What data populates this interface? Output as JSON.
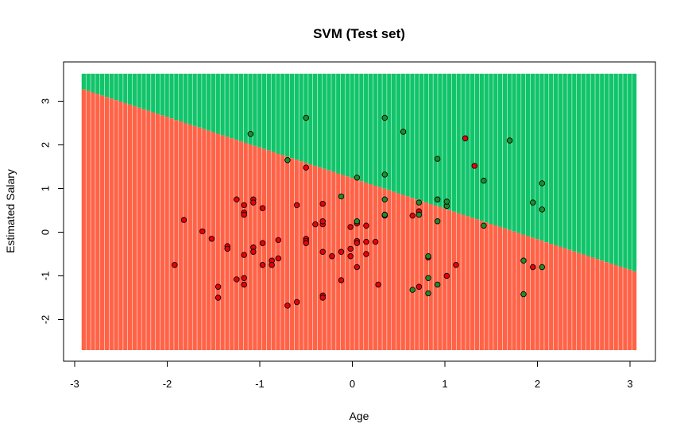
{
  "chart_data": {
    "type": "scatter",
    "title": "SVM (Test set)",
    "xlabel": "Age",
    "ylabel": "Estimated Salary",
    "xlim": [
      -3,
      3
    ],
    "ylim": [
      -2.5,
      3.5
    ],
    "xticks": [
      "-3",
      "-2",
      "-1",
      "0",
      "1",
      "2",
      "3"
    ],
    "yticks": [
      "-2",
      "-1",
      "0",
      "1",
      "2",
      "3"
    ],
    "grid": {
      "x_range": [
        -2.9,
        3.05
      ],
      "y_range": [
        -2.7,
        3.63
      ],
      "step": 0.05,
      "boundary": {
        "slope": -0.7,
        "intercept": 1.24
      }
    },
    "colors": {
      "region_0": "#ff6347",
      "region_1": "#11c46a",
      "point_0": "#e8000b",
      "point_1": "#1f8b2e",
      "stripe": "#ffffff"
    },
    "series": [
      {
        "class": 0,
        "points": [
          [
            -1.92,
            -0.75
          ],
          [
            -1.82,
            0.28
          ],
          [
            -1.62,
            0.02
          ],
          [
            -1.52,
            -0.15
          ],
          [
            -1.45,
            -1.25
          ],
          [
            -1.45,
            -1.5
          ],
          [
            -1.35,
            -0.32
          ],
          [
            -1.35,
            -0.38
          ],
          [
            -1.25,
            0.75
          ],
          [
            -1.25,
            -1.08
          ],
          [
            -1.17,
            0.62
          ],
          [
            -1.17,
            0.45
          ],
          [
            -1.17,
            0.4
          ],
          [
            -1.17,
            -1.05
          ],
          [
            -1.17,
            -1.2
          ],
          [
            -1.17,
            -0.52
          ],
          [
            -1.07,
            0.75
          ],
          [
            -1.07,
            0.68
          ],
          [
            -1.07,
            -0.35
          ],
          [
            -1.07,
            -0.45
          ],
          [
            -0.97,
            0.55
          ],
          [
            -0.97,
            -0.75
          ],
          [
            -0.97,
            -0.25
          ],
          [
            -0.87,
            -0.65
          ],
          [
            -0.87,
            -0.75
          ],
          [
            -0.8,
            -0.18
          ],
          [
            -0.8,
            -0.6
          ],
          [
            -0.7,
            -1.68
          ],
          [
            -0.6,
            0.62
          ],
          [
            -0.6,
            -1.6
          ],
          [
            -0.5,
            1.48
          ],
          [
            -0.5,
            -0.15
          ],
          [
            -0.5,
            -0.2
          ],
          [
            -0.5,
            -0.25
          ],
          [
            -0.4,
            0.18
          ],
          [
            -0.32,
            0.18
          ],
          [
            -0.32,
            0.65
          ],
          [
            -0.32,
            -0.45
          ],
          [
            -0.32,
            -1.45
          ],
          [
            -0.32,
            -1.5
          ],
          [
            -0.32,
            0.25
          ],
          [
            -0.22,
            -0.55
          ],
          [
            -0.12,
            -0.45
          ],
          [
            -0.12,
            -1.1
          ],
          [
            -0.02,
            0.12
          ],
          [
            -0.02,
            -0.38
          ],
          [
            -0.02,
            -0.55
          ],
          [
            0.05,
            -0.2
          ],
          [
            0.05,
            -0.25
          ],
          [
            0.05,
            0.2
          ],
          [
            0.05,
            -0.8
          ],
          [
            0.15,
            -0.22
          ],
          [
            0.15,
            -0.5
          ],
          [
            0.15,
            0.15
          ],
          [
            0.25,
            -0.22
          ],
          [
            0.28,
            -1.2
          ],
          [
            0.35,
            0.4
          ],
          [
            0.35,
            0.38
          ],
          [
            0.65,
            0.38
          ],
          [
            0.72,
            0.48
          ],
          [
            0.72,
            -1.25
          ],
          [
            0.82,
            -0.58
          ],
          [
            1.02,
            -1.0
          ],
          [
            1.12,
            -0.75
          ],
          [
            1.22,
            2.15
          ],
          [
            1.32,
            1.52
          ],
          [
            1.95,
            -0.8
          ]
        ]
      },
      {
        "class": 1,
        "points": [
          [
            -1.1,
            2.25
          ],
          [
            -0.5,
            2.62
          ],
          [
            -0.7,
            1.65
          ],
          [
            -0.12,
            0.82
          ],
          [
            0.05,
            0.25
          ],
          [
            0.05,
            1.25
          ],
          [
            0.35,
            2.62
          ],
          [
            0.35,
            1.32
          ],
          [
            0.35,
            0.75
          ],
          [
            0.35,
            0.4
          ],
          [
            0.55,
            2.3
          ],
          [
            0.65,
            -1.32
          ],
          [
            0.72,
            0.68
          ],
          [
            0.72,
            0.4
          ],
          [
            0.82,
            -0.55
          ],
          [
            0.82,
            -1.05
          ],
          [
            0.82,
            -1.4
          ],
          [
            0.92,
            1.68
          ],
          [
            0.92,
            0.75
          ],
          [
            0.92,
            0.25
          ],
          [
            0.92,
            -1.2
          ],
          [
            1.02,
            0.6
          ],
          [
            1.02,
            0.7
          ],
          [
            1.42,
            1.18
          ],
          [
            1.42,
            0.15
          ],
          [
            1.7,
            2.1
          ],
          [
            1.85,
            -0.65
          ],
          [
            1.85,
            -1.42
          ],
          [
            1.95,
            0.68
          ],
          [
            2.05,
            1.12
          ],
          [
            2.05,
            0.52
          ],
          [
            2.05,
            -0.8
          ]
        ]
      }
    ]
  }
}
